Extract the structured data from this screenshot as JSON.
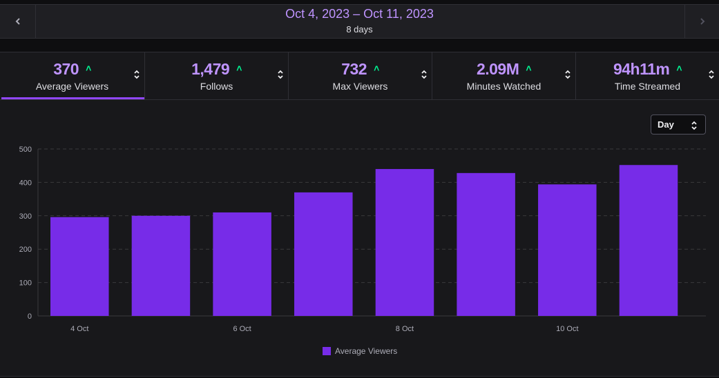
{
  "header": {
    "date_range": "Oct 4, 2023 – Oct 11, 2023",
    "days": "8 days",
    "prev_icon": "chevron-left-icon",
    "next_icon": "chevron-right-icon"
  },
  "stats": [
    {
      "value": "370",
      "label": "Average Viewers",
      "trend": "up",
      "active": true
    },
    {
      "value": "1,479",
      "label": "Follows",
      "trend": "up",
      "active": false
    },
    {
      "value": "732",
      "label": "Max Viewers",
      "trend": "up",
      "active": false
    },
    {
      "value": "2.09M",
      "label": "Minutes Watched",
      "trend": "up",
      "active": false
    },
    {
      "value": "94h11m",
      "label": "Time Streamed",
      "trend": "up",
      "active": false
    }
  ],
  "granularity": {
    "selected": "Day"
  },
  "colors": {
    "accent": "#9147ff",
    "bar": "#772ce8",
    "value": "#bf94ff",
    "trend_up": "#00f593"
  },
  "chart_data": {
    "type": "bar",
    "categories": [
      "4 Oct",
      "5 Oct",
      "6 Oct",
      "7 Oct",
      "8 Oct",
      "9 Oct",
      "10 Oct",
      "11 Oct"
    ],
    "x_tick_labels": [
      "4 Oct",
      "",
      "6 Oct",
      "",
      "8 Oct",
      "",
      "10 Oct",
      ""
    ],
    "series": [
      {
        "name": "Average Viewers",
        "values": [
          296,
          300,
          310,
          370,
          440,
          428,
          394,
          452
        ]
      }
    ],
    "ylim": [
      0,
      500
    ],
    "yticks": [
      0,
      100,
      200,
      300,
      400,
      500
    ],
    "grid": true,
    "legend": "bottom-center",
    "title": "",
    "xlabel": "",
    "ylabel": ""
  }
}
